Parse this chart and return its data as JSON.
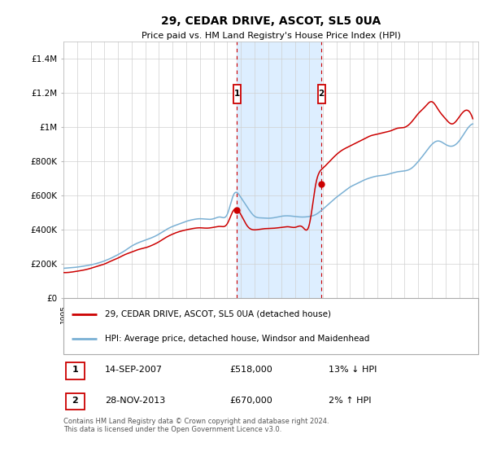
{
  "title": "29, CEDAR DRIVE, ASCOT, SL5 0UA",
  "subtitle": "Price paid vs. HM Land Registry's House Price Index (HPI)",
  "legend_line1": "29, CEDAR DRIVE, ASCOT, SL5 0UA (detached house)",
  "legend_line2": "HPI: Average price, detached house, Windsor and Maidenhead",
  "transaction1_date": "14-SEP-2007",
  "transaction1_price": 518000,
  "transaction1_label": "13% ↓ HPI",
  "transaction2_date": "28-NOV-2013",
  "transaction2_price": 670000,
  "transaction2_label": "2% ↑ HPI",
  "footer": "Contains HM Land Registry data © Crown copyright and database right 2024.\nThis data is licensed under the Open Government Licence v3.0.",
  "ylim": [
    0,
    1500000
  ],
  "yticks": [
    0,
    200000,
    400000,
    600000,
    800000,
    1000000,
    1200000,
    1400000
  ],
  "ytick_labels": [
    "£0",
    "£200K",
    "£400K",
    "£600K",
    "£800K",
    "£1M",
    "£1.2M",
    "£1.4M"
  ],
  "red_color": "#cc0000",
  "blue_color": "#7ab0d4",
  "shade_color": "#ddeeff",
  "marker_box_color": "#cc0000",
  "transaction1_x": 2007.71,
  "transaction2_x": 2013.91,
  "xlim_start": 1995.0,
  "xlim_end": 2025.4,
  "hpi_data": {
    "years": [
      1995.0,
      1995.5,
      1996.0,
      1996.5,
      1997.0,
      1997.5,
      1998.0,
      1998.5,
      1999.0,
      1999.5,
      2000.0,
      2000.5,
      2001.0,
      2001.5,
      2002.0,
      2002.5,
      2003.0,
      2003.5,
      2004.0,
      2004.5,
      2005.0,
      2005.5,
      2006.0,
      2006.5,
      2007.0,
      2007.5,
      2008.0,
      2008.5,
      2009.0,
      2009.5,
      2010.0,
      2010.5,
      2011.0,
      2011.5,
      2012.0,
      2012.5,
      2013.0,
      2013.5,
      2014.0,
      2014.5,
      2015.0,
      2015.5,
      2016.0,
      2016.5,
      2017.0,
      2017.5,
      2018.0,
      2018.5,
      2019.0,
      2019.5,
      2020.0,
      2020.5,
      2021.0,
      2021.5,
      2022.0,
      2022.5,
      2023.0,
      2023.5,
      2024.0,
      2024.5,
      2025.0
    ],
    "values": [
      175000,
      178000,
      182000,
      188000,
      195000,
      205000,
      218000,
      235000,
      255000,
      278000,
      305000,
      325000,
      340000,
      355000,
      375000,
      400000,
      420000,
      435000,
      450000,
      460000,
      465000,
      462000,
      465000,
      475000,
      490000,
      610000,
      590000,
      530000,
      480000,
      470000,
      468000,
      472000,
      480000,
      482000,
      478000,
      475000,
      478000,
      490000,
      520000,
      555000,
      590000,
      620000,
      650000,
      670000,
      690000,
      705000,
      715000,
      720000,
      730000,
      740000,
      745000,
      760000,
      800000,
      850000,
      900000,
      920000,
      900000,
      890000,
      920000,
      980000,
      1020000
    ]
  },
  "red_data": {
    "years": [
      1995.0,
      1995.5,
      1996.0,
      1996.5,
      1997.0,
      1997.5,
      1998.0,
      1998.5,
      1999.0,
      1999.5,
      2000.0,
      2000.5,
      2001.0,
      2001.5,
      2002.0,
      2002.5,
      2003.0,
      2003.5,
      2004.0,
      2004.5,
      2005.0,
      2005.5,
      2006.0,
      2006.5,
      2007.0,
      2007.5,
      2008.0,
      2008.5,
      2009.0,
      2009.5,
      2010.0,
      2010.5,
      2011.0,
      2011.5,
      2012.0,
      2012.5,
      2013.0,
      2013.5,
      2014.0,
      2014.5,
      2015.0,
      2015.5,
      2016.0,
      2016.5,
      2017.0,
      2017.5,
      2018.0,
      2018.5,
      2019.0,
      2019.5,
      2020.0,
      2020.5,
      2021.0,
      2021.5,
      2022.0,
      2022.5,
      2023.0,
      2023.5,
      2024.0,
      2024.5,
      2025.0
    ],
    "values": [
      150000,
      152000,
      158000,
      165000,
      175000,
      188000,
      200000,
      218000,
      235000,
      255000,
      270000,
      285000,
      295000,
      310000,
      330000,
      355000,
      375000,
      390000,
      400000,
      408000,
      412000,
      410000,
      415000,
      420000,
      435000,
      518000,
      490000,
      420000,
      400000,
      405000,
      408000,
      410000,
      415000,
      418000,
      415000,
      418000,
      425000,
      670000,
      760000,
      800000,
      840000,
      870000,
      890000,
      910000,
      930000,
      950000,
      960000,
      970000,
      980000,
      995000,
      1000000,
      1030000,
      1080000,
      1120000,
      1150000,
      1100000,
      1050000,
      1020000,
      1060000,
      1100000,
      1050000
    ]
  }
}
